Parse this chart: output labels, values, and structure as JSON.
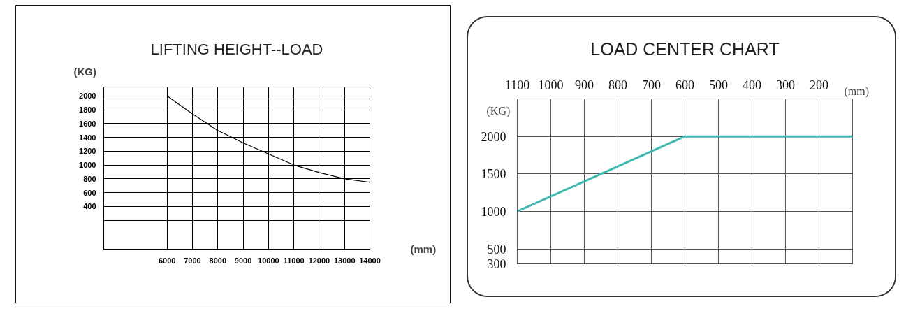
{
  "chart_data": [
    {
      "type": "line",
      "title": "LIFTING HEIGHT--LOAD",
      "xlabel": "(mm)",
      "ylabel": "(KG)",
      "x": [
        6000,
        7000,
        8000,
        8500,
        9000,
        10000,
        11000,
        12000,
        13000,
        14000
      ],
      "series": [
        {
          "color": "#000000",
          "values": [
            2000,
            1740,
            1500,
            1410,
            1320,
            1160,
            1000,
            890,
            800,
            750
          ]
        }
      ],
      "xlim": [
        3500,
        14000
      ],
      "xticks": [
        6000,
        7000,
        8000,
        9000,
        10000,
        11000,
        12000,
        13000,
        14000
      ],
      "ylim": [
        -220,
        2130
      ],
      "yticks": [
        {
          "value": 200,
          "label": null
        },
        400,
        600,
        800,
        1000,
        1200,
        1400,
        1600,
        1800,
        2000
      ],
      "grid": true
    },
    {
      "type": "line",
      "title": "LOAD CENTER CHART",
      "xlabel": "(mm)",
      "ylabel": "(KG)",
      "x": [
        1100,
        600,
        100
      ],
      "series": [
        {
          "color": "#3fb8b0",
          "values": [
            1000,
            2000,
            2000
          ]
        }
      ],
      "xlim": [
        1100,
        100
      ],
      "xticks": [
        1100,
        1000,
        900,
        800,
        700,
        600,
        500,
        400,
        300,
        200
      ],
      "ylim": [
        300,
        2500
      ],
      "yticks": [
        300,
        500,
        1000,
        1500,
        2000
      ],
      "grid": true
    }
  ]
}
